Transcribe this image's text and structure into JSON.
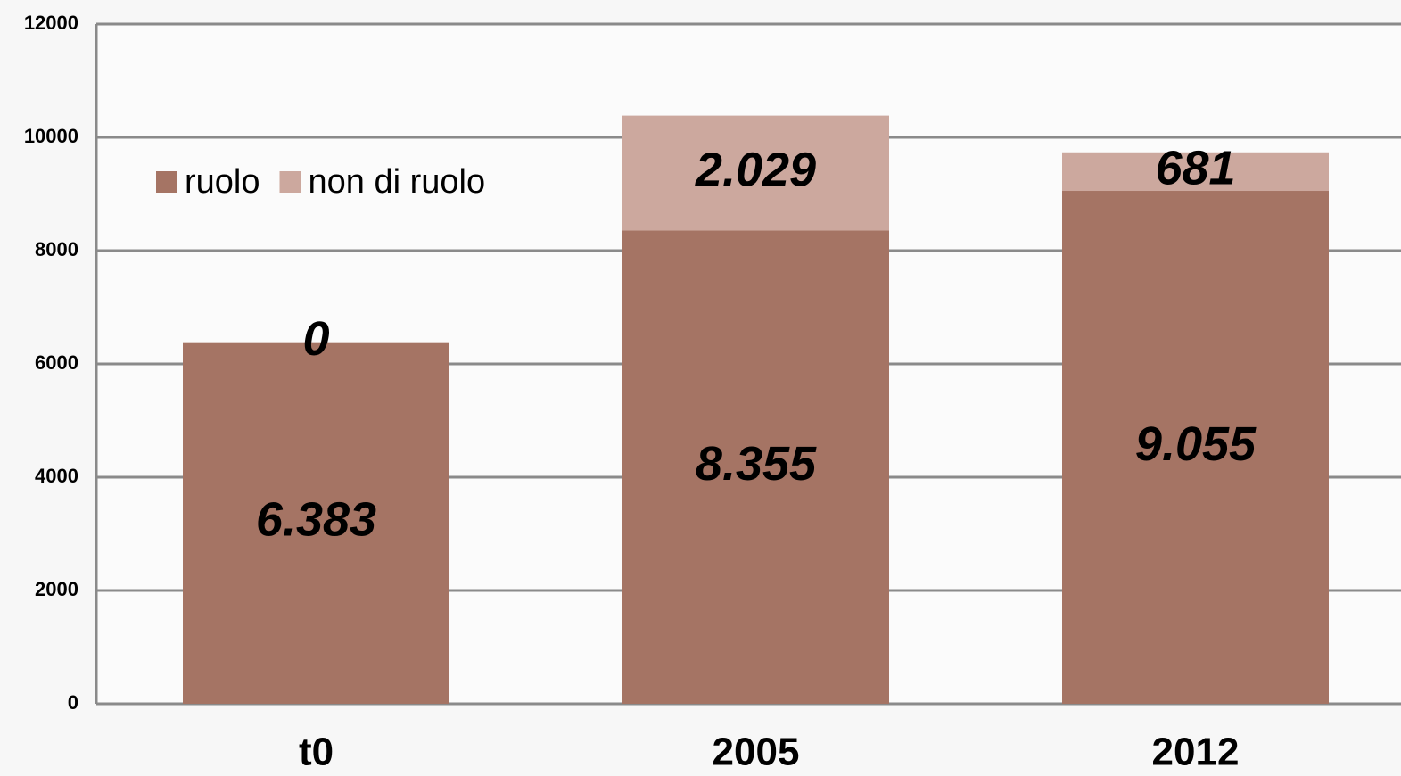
{
  "chart_data": {
    "type": "stacked_bar",
    "categories": [
      "t0",
      "2005",
      "2012"
    ],
    "series": [
      {
        "name": "ruolo",
        "color": "#a57464",
        "values": [
          6383,
          8355,
          9055
        ],
        "value_labels": [
          "6.383",
          "8.355",
          "9.055"
        ]
      },
      {
        "name": "non di ruolo",
        "color": "#cca89e",
        "values": [
          0,
          2029,
          681
        ],
        "value_labels": [
          "0",
          "2.029",
          "681"
        ]
      }
    ],
    "ylim": [
      0,
      12000
    ],
    "yticks": [
      0,
      2000,
      4000,
      6000,
      8000,
      10000,
      12000
    ],
    "grid": true,
    "legend": "top-left"
  }
}
